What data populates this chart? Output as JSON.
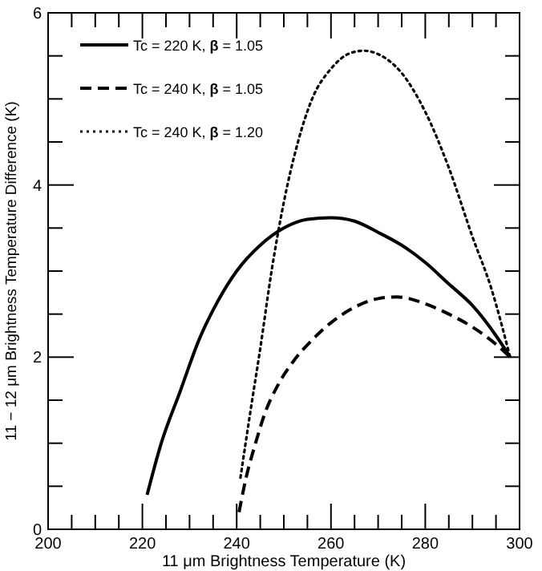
{
  "chart_data": {
    "type": "line",
    "xlabel": "11 μm Brightness Temperature (K)",
    "ylabel": "11 − 12 μm Brightness Temperature Difference (K)",
    "xlim": [
      200,
      300
    ],
    "ylim": [
      0,
      6
    ],
    "xticks": [
      200,
      {
        "value": 205,
        "label": null
      },
      {
        "value": 210,
        "label": null
      },
      {
        "value": 215,
        "label": null
      },
      220,
      {
        "value": 225,
        "label": null
      },
      {
        "value": 230,
        "label": null
      },
      {
        "value": 235,
        "label": null
      },
      240,
      {
        "value": 245,
        "label": null
      },
      {
        "value": 250,
        "label": null
      },
      {
        "value": 255,
        "label": null
      },
      260,
      {
        "value": 265,
        "label": null
      },
      {
        "value": 270,
        "label": null
      },
      {
        "value": 275,
        "label": null
      },
      280,
      {
        "value": 285,
        "label": null
      },
      {
        "value": 290,
        "label": null
      },
      {
        "value": 295,
        "label": null
      },
      300
    ],
    "yticks": [
      0,
      {
        "value": 0.5,
        "label": null
      },
      {
        "value": 1,
        "label": null
      },
      {
        "value": 1.5,
        "label": null
      },
      2,
      {
        "value": 2.5,
        "label": null
      },
      {
        "value": 3,
        "label": null
      },
      {
        "value": 3.5,
        "label": null
      },
      4,
      {
        "value": 4.5,
        "label": null
      },
      {
        "value": 5,
        "label": null
      },
      {
        "value": 5.5,
        "label": null
      },
      6
    ],
    "grid": false,
    "legend": "top left",
    "marker": "none",
    "series": [
      {
        "name": "Tc = 220 K, β = 1.05",
        "color": "#000000",
        "line_style": "solid",
        "x": [
          221,
          224,
          228,
          232,
          236,
          240,
          245,
          250,
          255,
          260,
          265,
          270,
          275,
          280,
          285,
          290,
          295,
          298
        ],
        "values": [
          0.4,
          1.0,
          1.6,
          2.2,
          2.65,
          3.0,
          3.3,
          3.5,
          3.6,
          3.62,
          3.58,
          3.45,
          3.3,
          3.1,
          2.85,
          2.6,
          2.25,
          2.0
        ]
      },
      {
        "name": "Tc = 240 K, β = 1.05",
        "color": "#000000",
        "line_style": "dashed",
        "x": [
          240.5,
          242,
          244,
          246,
          249,
          252,
          256,
          260,
          265,
          270,
          274,
          280,
          285,
          290,
          295,
          298
        ],
        "values": [
          0.2,
          0.6,
          1.0,
          1.35,
          1.7,
          1.95,
          2.2,
          2.4,
          2.58,
          2.68,
          2.7,
          2.62,
          2.5,
          2.35,
          2.15,
          2.0
        ]
      },
      {
        "name": "Tc = 240 K, β = 1.20",
        "color": "#000000",
        "line_style": "dotted",
        "x": [
          240.8,
          243,
          245,
          247.4,
          250,
          253,
          256,
          260,
          264,
          267,
          270,
          275,
          280,
          285,
          290,
          294,
          298
        ],
        "values": [
          0.6,
          1.4,
          2.1,
          3.0,
          3.8,
          4.5,
          5.0,
          5.35,
          5.53,
          5.56,
          5.52,
          5.3,
          4.85,
          4.2,
          3.4,
          2.8,
          2.0
        ]
      }
    ]
  }
}
